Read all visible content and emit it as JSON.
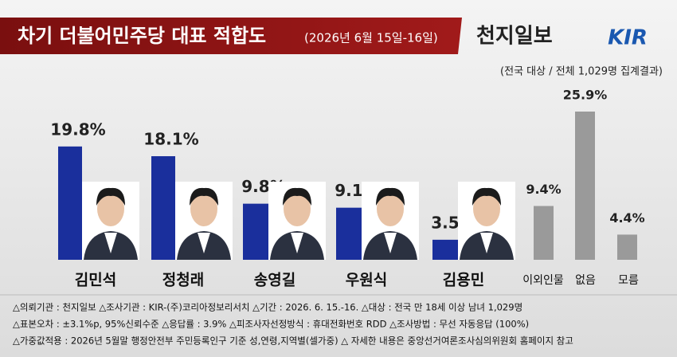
{
  "chart_data": {
    "type": "bar",
    "title": "차기 더불어민주당 대표 적합도",
    "subtitle": "(2026년 6월 15일-16일)",
    "publisher": "천지일보",
    "logo": "KIR",
    "note": "(전국 대상 / 전체 1,029명 집계결과)",
    "categories": [
      "김민석",
      "정청래",
      "송영길",
      "우원식",
      "김용민",
      "이외인물",
      "없음",
      "모름"
    ],
    "values": [
      19.8,
      18.1,
      9.8,
      9.1,
      3.5,
      9.4,
      25.9,
      4.4
    ],
    "value_labels": [
      "19.8%",
      "18.1%",
      "9.8%",
      "9.1%",
      "3.5%",
      "9.4%",
      "25.9%",
      "4.4%"
    ],
    "colors": [
      "#1a2f9c",
      "#1a2f9c",
      "#1a2f9c",
      "#1a2f9c",
      "#1a2f9c",
      "#9a9a9a",
      "#9a9a9a",
      "#9a9a9a"
    ],
    "footnotes": [
      "△의뢰기관 : 천지일보   △조사기관 : KIR-(주)코리아정보리서치   △기간 : 2026. 6. 15.-16.  △대상 : 전국 만 18세 이상 남녀 1,029명",
      "△표본오차 : ±3.1%p, 95%신뢰수준  △응답률 : 3.9%  △피조사자선정방식 : 휴대전화번호 RDD  △조사방법 : 무선 자동응답 (100%)",
      "△가중값적용 : 2026년 5월말 행정안전부 주민등록인구 기준 성,연령,지역별(셀가중)  △ 자세한 내용은 중앙선거여론조사심의위원회 홈페이지 참고"
    ]
  }
}
